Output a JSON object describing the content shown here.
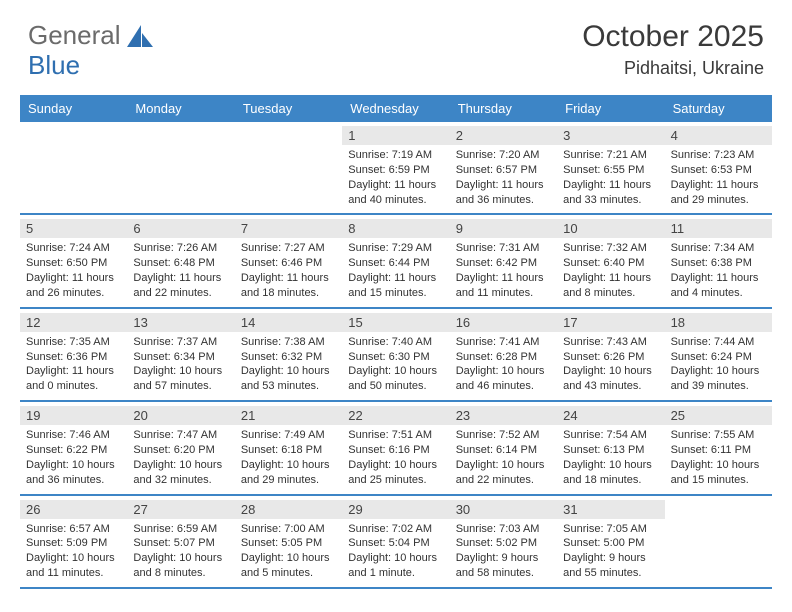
{
  "brand": {
    "part1": "General",
    "part2": "Blue"
  },
  "title": "October 2025",
  "location": "Pidhaitsi, Ukraine",
  "colors": {
    "header_bar": "#3d85c6",
    "daynum_bg": "#e8e8e8",
    "text": "#323232",
    "border": "#3d85c6",
    "background": "#ffffff"
  },
  "daynames": [
    "Sunday",
    "Monday",
    "Tuesday",
    "Wednesday",
    "Thursday",
    "Friday",
    "Saturday"
  ],
  "weeks": [
    [
      {
        "n": "",
        "sr": "",
        "ss": "",
        "dl": ""
      },
      {
        "n": "",
        "sr": "",
        "ss": "",
        "dl": ""
      },
      {
        "n": "",
        "sr": "",
        "ss": "",
        "dl": ""
      },
      {
        "n": "1",
        "sr": "Sunrise: 7:19 AM",
        "ss": "Sunset: 6:59 PM",
        "dl": "Daylight: 11 hours and 40 minutes."
      },
      {
        "n": "2",
        "sr": "Sunrise: 7:20 AM",
        "ss": "Sunset: 6:57 PM",
        "dl": "Daylight: 11 hours and 36 minutes."
      },
      {
        "n": "3",
        "sr": "Sunrise: 7:21 AM",
        "ss": "Sunset: 6:55 PM",
        "dl": "Daylight: 11 hours and 33 minutes."
      },
      {
        "n": "4",
        "sr": "Sunrise: 7:23 AM",
        "ss": "Sunset: 6:53 PM",
        "dl": "Daylight: 11 hours and 29 minutes."
      }
    ],
    [
      {
        "n": "5",
        "sr": "Sunrise: 7:24 AM",
        "ss": "Sunset: 6:50 PM",
        "dl": "Daylight: 11 hours and 26 minutes."
      },
      {
        "n": "6",
        "sr": "Sunrise: 7:26 AM",
        "ss": "Sunset: 6:48 PM",
        "dl": "Daylight: 11 hours and 22 minutes."
      },
      {
        "n": "7",
        "sr": "Sunrise: 7:27 AM",
        "ss": "Sunset: 6:46 PM",
        "dl": "Daylight: 11 hours and 18 minutes."
      },
      {
        "n": "8",
        "sr": "Sunrise: 7:29 AM",
        "ss": "Sunset: 6:44 PM",
        "dl": "Daylight: 11 hours and 15 minutes."
      },
      {
        "n": "9",
        "sr": "Sunrise: 7:31 AM",
        "ss": "Sunset: 6:42 PM",
        "dl": "Daylight: 11 hours and 11 minutes."
      },
      {
        "n": "10",
        "sr": "Sunrise: 7:32 AM",
        "ss": "Sunset: 6:40 PM",
        "dl": "Daylight: 11 hours and 8 minutes."
      },
      {
        "n": "11",
        "sr": "Sunrise: 7:34 AM",
        "ss": "Sunset: 6:38 PM",
        "dl": "Daylight: 11 hours and 4 minutes."
      }
    ],
    [
      {
        "n": "12",
        "sr": "Sunrise: 7:35 AM",
        "ss": "Sunset: 6:36 PM",
        "dl": "Daylight: 11 hours and 0 minutes."
      },
      {
        "n": "13",
        "sr": "Sunrise: 7:37 AM",
        "ss": "Sunset: 6:34 PM",
        "dl": "Daylight: 10 hours and 57 minutes."
      },
      {
        "n": "14",
        "sr": "Sunrise: 7:38 AM",
        "ss": "Sunset: 6:32 PM",
        "dl": "Daylight: 10 hours and 53 minutes."
      },
      {
        "n": "15",
        "sr": "Sunrise: 7:40 AM",
        "ss": "Sunset: 6:30 PM",
        "dl": "Daylight: 10 hours and 50 minutes."
      },
      {
        "n": "16",
        "sr": "Sunrise: 7:41 AM",
        "ss": "Sunset: 6:28 PM",
        "dl": "Daylight: 10 hours and 46 minutes."
      },
      {
        "n": "17",
        "sr": "Sunrise: 7:43 AM",
        "ss": "Sunset: 6:26 PM",
        "dl": "Daylight: 10 hours and 43 minutes."
      },
      {
        "n": "18",
        "sr": "Sunrise: 7:44 AM",
        "ss": "Sunset: 6:24 PM",
        "dl": "Daylight: 10 hours and 39 minutes."
      }
    ],
    [
      {
        "n": "19",
        "sr": "Sunrise: 7:46 AM",
        "ss": "Sunset: 6:22 PM",
        "dl": "Daylight: 10 hours and 36 minutes."
      },
      {
        "n": "20",
        "sr": "Sunrise: 7:47 AM",
        "ss": "Sunset: 6:20 PM",
        "dl": "Daylight: 10 hours and 32 minutes."
      },
      {
        "n": "21",
        "sr": "Sunrise: 7:49 AM",
        "ss": "Sunset: 6:18 PM",
        "dl": "Daylight: 10 hours and 29 minutes."
      },
      {
        "n": "22",
        "sr": "Sunrise: 7:51 AM",
        "ss": "Sunset: 6:16 PM",
        "dl": "Daylight: 10 hours and 25 minutes."
      },
      {
        "n": "23",
        "sr": "Sunrise: 7:52 AM",
        "ss": "Sunset: 6:14 PM",
        "dl": "Daylight: 10 hours and 22 minutes."
      },
      {
        "n": "24",
        "sr": "Sunrise: 7:54 AM",
        "ss": "Sunset: 6:13 PM",
        "dl": "Daylight: 10 hours and 18 minutes."
      },
      {
        "n": "25",
        "sr": "Sunrise: 7:55 AM",
        "ss": "Sunset: 6:11 PM",
        "dl": "Daylight: 10 hours and 15 minutes."
      }
    ],
    [
      {
        "n": "26",
        "sr": "Sunrise: 6:57 AM",
        "ss": "Sunset: 5:09 PM",
        "dl": "Daylight: 10 hours and 11 minutes."
      },
      {
        "n": "27",
        "sr": "Sunrise: 6:59 AM",
        "ss": "Sunset: 5:07 PM",
        "dl": "Daylight: 10 hours and 8 minutes."
      },
      {
        "n": "28",
        "sr": "Sunrise: 7:00 AM",
        "ss": "Sunset: 5:05 PM",
        "dl": "Daylight: 10 hours and 5 minutes."
      },
      {
        "n": "29",
        "sr": "Sunrise: 7:02 AM",
        "ss": "Sunset: 5:04 PM",
        "dl": "Daylight: 10 hours and 1 minute."
      },
      {
        "n": "30",
        "sr": "Sunrise: 7:03 AM",
        "ss": "Sunset: 5:02 PM",
        "dl": "Daylight: 9 hours and 58 minutes."
      },
      {
        "n": "31",
        "sr": "Sunrise: 7:05 AM",
        "ss": "Sunset: 5:00 PM",
        "dl": "Daylight: 9 hours and 55 minutes."
      },
      {
        "n": "",
        "sr": "",
        "ss": "",
        "dl": ""
      }
    ]
  ]
}
